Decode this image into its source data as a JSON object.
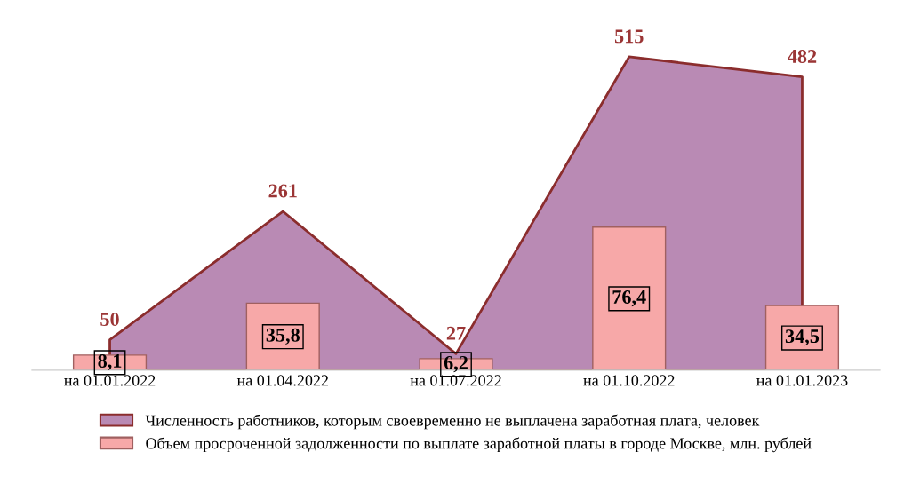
{
  "chart_data": {
    "type": "bar",
    "categories": [
      "на 01.01.2022",
      "на 01.04.2022",
      "на 01.07.2022",
      "на 01.10.2022",
      "на 01.01.2023"
    ],
    "series": [
      {
        "name": "Численность работников, которым своевременно не выплачена заработная плата, человек",
        "type": "area",
        "axis": "y2",
        "color": "#b98ab4",
        "values": [
          50,
          261,
          27,
          515,
          482
        ],
        "value_labels": [
          "50",
          "261",
          "27",
          "515",
          "482"
        ]
      },
      {
        "name": "Объем просроченной задолженности по выплате заработной платы в городе Москве, млн. рублей",
        "color": "#f7a8a8",
        "values": [
          8.1,
          35.8,
          6.2,
          76.4,
          34.5
        ],
        "value_labels": [
          "8,1",
          "35,8",
          "6,2",
          "76,4",
          "34,5"
        ]
      }
    ],
    "tick_labels": "x",
    "legend": "bottom"
  }
}
